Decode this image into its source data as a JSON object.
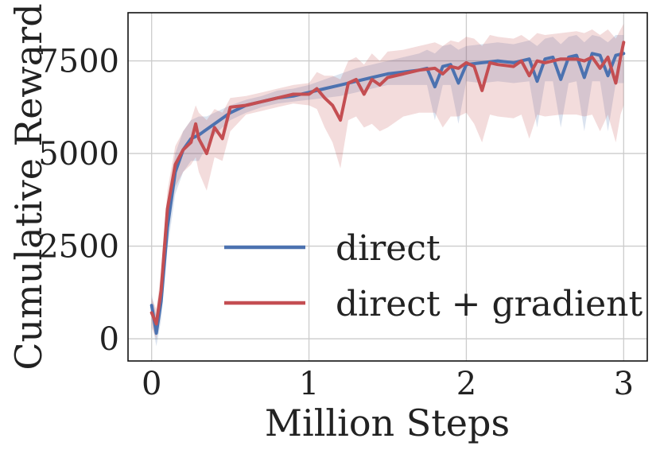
{
  "chart_data": {
    "type": "line",
    "title": "",
    "xlabel": "Million Steps",
    "ylabel": "Cumulative Reward",
    "xlim": [
      -0.15,
      3.15
    ],
    "ylim": [
      -600,
      8800
    ],
    "xticks": [
      0,
      1,
      2,
      3
    ],
    "xtick_labels": [
      "0",
      "1",
      "2",
      "3"
    ],
    "yticks": [
      0,
      2500,
      5000,
      7500
    ],
    "ytick_labels": [
      "0",
      "2500",
      "5000",
      "7500"
    ],
    "grid": true,
    "legend_placement": "bottom-right",
    "series": [
      {
        "name": "direct",
        "color": "#4c72b0",
        "x": [
          0,
          0.03,
          0.06,
          0.1,
          0.15,
          0.2,
          0.25,
          0.3,
          0.35,
          0.4,
          0.45,
          0.5,
          0.6,
          0.7,
          0.8,
          0.9,
          1.0,
          1.1,
          1.2,
          1.3,
          1.4,
          1.5,
          1.6,
          1.7,
          1.75,
          1.8,
          1.85,
          1.9,
          1.95,
          2.0,
          2.1,
          2.2,
          2.3,
          2.4,
          2.45,
          2.5,
          2.55,
          2.6,
          2.65,
          2.7,
          2.75,
          2.8,
          2.85,
          2.9,
          2.95,
          3.0
        ],
        "y": [
          900,
          150,
          1000,
          3000,
          4500,
          5100,
          5400,
          5500,
          5650,
          5800,
          5950,
          6100,
          6300,
          6400,
          6500,
          6550,
          6650,
          6750,
          6850,
          6950,
          7050,
          7150,
          7200,
          7250,
          7300,
          6800,
          7350,
          7400,
          6900,
          7400,
          7450,
          7500,
          7450,
          7550,
          6950,
          7550,
          7600,
          7000,
          7600,
          7650,
          7050,
          7700,
          7650,
          7100,
          7650,
          7700
        ],
        "band_low": [
          500,
          -200,
          500,
          2400,
          3900,
          4500,
          4800,
          4800,
          5200,
          5500,
          5700,
          5900,
          6100,
          6250,
          6350,
          6400,
          6450,
          6500,
          6550,
          6650,
          6750,
          6850,
          6850,
          6850,
          6850,
          5900,
          6850,
          6850,
          5800,
          6950,
          6900,
          6950,
          6900,
          6950,
          5700,
          6950,
          6950,
          5700,
          6900,
          6950,
          5600,
          6950,
          6950,
          5600,
          6900,
          6900
        ],
        "band_high": [
          1200,
          600,
          1500,
          3600,
          5000,
          5600,
          5900,
          6000,
          6000,
          6100,
          6200,
          6300,
          6450,
          6550,
          6700,
          6750,
          6850,
          7000,
          7150,
          7300,
          7400,
          7500,
          7600,
          7700,
          7800,
          7700,
          7900,
          7950,
          7800,
          7900,
          7950,
          8000,
          7950,
          8050,
          7900,
          8100,
          8150,
          7950,
          8150,
          8200,
          8000,
          8200,
          8150,
          8000,
          8200,
          8200
        ]
      },
      {
        "name": "direct + gradient",
        "color": "#c44e52",
        "x": [
          0,
          0.03,
          0.06,
          0.1,
          0.15,
          0.2,
          0.25,
          0.28,
          0.3,
          0.35,
          0.4,
          0.45,
          0.5,
          0.6,
          0.7,
          0.8,
          0.9,
          1.0,
          1.05,
          1.1,
          1.15,
          1.2,
          1.25,
          1.3,
          1.35,
          1.4,
          1.45,
          1.5,
          1.6,
          1.7,
          1.8,
          1.85,
          1.9,
          1.95,
          2.0,
          2.05,
          2.1,
          2.15,
          2.2,
          2.3,
          2.35,
          2.4,
          2.45,
          2.5,
          2.6,
          2.7,
          2.75,
          2.8,
          2.85,
          2.9,
          2.95,
          2.98,
          3.0
        ],
        "y": [
          700,
          400,
          1300,
          3500,
          4700,
          5100,
          5300,
          5800,
          5400,
          5000,
          5700,
          5400,
          6250,
          6300,
          6400,
          6500,
          6600,
          6600,
          6750,
          6500,
          6300,
          5900,
          6900,
          7000,
          6600,
          7000,
          6850,
          7050,
          7150,
          7250,
          7300,
          7150,
          7350,
          7300,
          7450,
          7350,
          6700,
          7450,
          7400,
          7350,
          7500,
          7100,
          7500,
          7450,
          7550,
          7550,
          7500,
          7600,
          7300,
          7600,
          6900,
          7600,
          8000
        ],
        "band_low": [
          300,
          0,
          800,
          2900,
          4100,
          4500,
          4700,
          4900,
          4500,
          4000,
          4900,
          4800,
          5600,
          6050,
          6150,
          6250,
          6350,
          6300,
          6200,
          5700,
          5300,
          4600,
          5900,
          6000,
          5700,
          5800,
          5600,
          5700,
          6000,
          6100,
          6100,
          5700,
          6000,
          6000,
          6100,
          5800,
          5300,
          6050,
          6000,
          5950,
          6050,
          5400,
          6050,
          6000,
          6050,
          6050,
          6000,
          6050,
          5600,
          6050,
          5300,
          6050,
          6300
        ],
        "band_high": [
          1100,
          800,
          1800,
          4000,
          5200,
          5600,
          5900,
          6300,
          6100,
          5900,
          6200,
          6100,
          6500,
          6550,
          6650,
          6750,
          6850,
          6900,
          7200,
          7100,
          7100,
          7000,
          7500,
          7600,
          7400,
          7700,
          7500,
          7750,
          7800,
          7900,
          8000,
          7900,
          8050,
          8000,
          8150,
          8100,
          7900,
          8200,
          8150,
          8100,
          8200,
          8050,
          8250,
          8200,
          8250,
          8300,
          8250,
          8350,
          8200,
          8350,
          8100,
          8350,
          8500
        ]
      }
    ]
  }
}
